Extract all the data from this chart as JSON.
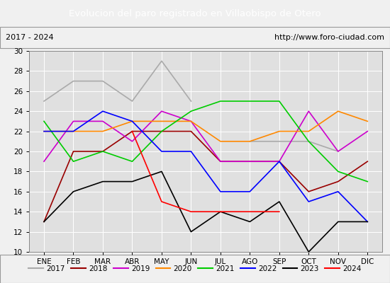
{
  "title": "Evolucion del paro registrado en Villaobispo de Otero",
  "subtitle_left": "2017 - 2024",
  "subtitle_right": "http://www.foro-ciudad.com",
  "months": [
    "ENE",
    "FEB",
    "MAR",
    "ABR",
    "MAY",
    "JUN",
    "JUL",
    "AGO",
    "SEP",
    "OCT",
    "NOV",
    "DIC"
  ],
  "ylim": [
    10,
    30
  ],
  "yticks": [
    10,
    12,
    14,
    16,
    18,
    20,
    22,
    24,
    26,
    28,
    30
  ],
  "series": {
    "2017": {
      "color": "#aaaaaa",
      "values": [
        25,
        27,
        27,
        25,
        29,
        25,
        null,
        21,
        21,
        21,
        20,
        null
      ]
    },
    "2018": {
      "color": "#990000",
      "values": [
        13,
        20,
        20,
        22,
        22,
        22,
        19,
        19,
        19,
        16,
        17,
        19
      ]
    },
    "2019": {
      "color": "#cc00cc",
      "values": [
        19,
        23,
        23,
        21,
        24,
        23,
        19,
        19,
        19,
        24,
        20,
        22
      ]
    },
    "2020": {
      "color": "#ff8800",
      "values": [
        22,
        22,
        22,
        23,
        23,
        23,
        21,
        21,
        22,
        22,
        24,
        23
      ]
    },
    "2021": {
      "color": "#00cc00",
      "values": [
        23,
        19,
        20,
        19,
        22,
        24,
        25,
        25,
        25,
        21,
        18,
        17
      ]
    },
    "2022": {
      "color": "#0000ff",
      "values": [
        22,
        22,
        24,
        23,
        20,
        20,
        16,
        16,
        19,
        15,
        16,
        13
      ]
    },
    "2023": {
      "color": "#000000",
      "values": [
        13,
        16,
        17,
        17,
        18,
        12,
        14,
        13,
        15,
        10,
        13,
        13
      ]
    },
    "2024": {
      "color": "#ff0000",
      "values": [
        13,
        null,
        null,
        22,
        15,
        14,
        14,
        14,
        14,
        null,
        null,
        null
      ]
    }
  },
  "background_color": "#f0f0f0",
  "plot_bg_color": "#e0e0e0",
  "title_bg_color": "#4472c4",
  "title_text_color": "#ffffff",
  "subtitle_bg_color": "#d8d8d8",
  "legend_bg_color": "#e8e8e8",
  "grid_color": "#ffffff"
}
